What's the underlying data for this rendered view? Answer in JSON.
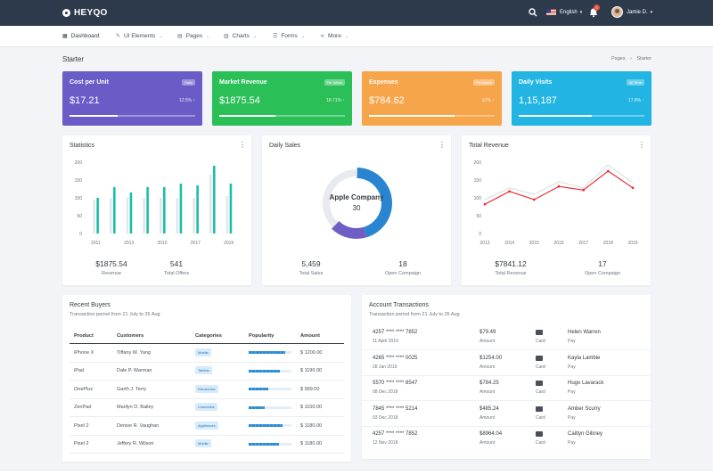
{
  "app": {
    "name": "HEYQO"
  },
  "topbar": {
    "language": "English",
    "notifications_count": "5",
    "user_name": "Jamie D."
  },
  "nav": [
    {
      "label": "Dashboard",
      "icon": "grid-icon"
    },
    {
      "label": "UI Elements",
      "icon": "brush-icon"
    },
    {
      "label": "Pages",
      "icon": "pages-icon"
    },
    {
      "label": "Charts",
      "icon": "chart-icon"
    },
    {
      "label": "Forms",
      "icon": "form-icon"
    },
    {
      "label": "More",
      "icon": "share-icon"
    }
  ],
  "page": {
    "title": "Starter",
    "breadcrumb": [
      "Pages",
      "Starter"
    ]
  },
  "stats": [
    {
      "title": "Cost per Unit",
      "badge": "Daily",
      "value": "$17.21",
      "pct": "12.5%",
      "progress": 0.38,
      "color": "#6a5cc6"
    },
    {
      "title": "Market Revenue",
      "badge": "Per Week",
      "value": "$1875.54",
      "pct": "18.71%",
      "progress": 0.45,
      "color": "#2bbf58"
    },
    {
      "title": "Expenses",
      "badge": "Per Month",
      "value": "$784.62",
      "pct": "57%",
      "progress": 0.68,
      "color": "#f7a54a"
    },
    {
      "title": "Daily Visits",
      "badge": "All Time",
      "value": "1,15,187",
      "pct": "17.8%",
      "progress": 0.58,
      "color": "#22b4e2"
    }
  ],
  "statistics": {
    "title": "Statistics",
    "chart_data": {
      "type": "bar",
      "x": [
        "2011",
        "2012",
        "2013",
        "2014",
        "2015",
        "2016",
        "2017",
        "2018",
        "2019"
      ],
      "xticks": [
        "2011",
        "2013",
        "2015",
        "2017",
        "2019"
      ],
      "yticks": [
        "0",
        "50",
        "100",
        "150",
        "200"
      ],
      "ylim": [
        0,
        200
      ],
      "series": [
        {
          "values": [
            95,
            100,
            100,
            100,
            100,
            100,
            100,
            165,
            105
          ],
          "color": "#e3e7eb"
        },
        {
          "values": [
            100,
            130,
            115,
            130,
            130,
            140,
            135,
            190,
            140
          ],
          "color": "#1bbfa9"
        }
      ]
    },
    "summary": [
      {
        "value": "$1875.54",
        "label": "Revenue"
      },
      {
        "value": "541",
        "label": "Total Offers"
      }
    ]
  },
  "daily_sales": {
    "title": "Daily Sales",
    "chart_data": {
      "type": "pie",
      "center_label": "Apple Company",
      "center_value": "30",
      "slices": [
        {
          "value": 45,
          "color": "#2a85d0"
        },
        {
          "value": 17,
          "color": "#6f5fc4"
        },
        {
          "value": 38,
          "color": "#e7eaee"
        }
      ]
    },
    "summary": [
      {
        "value": "5,459",
        "label": "Total Sales"
      },
      {
        "value": "18",
        "label": "Open Compaign"
      }
    ]
  },
  "total_revenue": {
    "title": "Total Revenue",
    "chart_data": {
      "type": "line",
      "x": [
        "2013",
        "2014",
        "2015",
        "2016",
        "2017",
        "2018",
        "2019"
      ],
      "yticks": [
        "0",
        "50",
        "100",
        "150",
        "200"
      ],
      "ylim": [
        0,
        200
      ],
      "series": [
        {
          "values": [
            95,
            128,
            110,
            145,
            128,
            192,
            142
          ],
          "color": "#e1e4e8"
        },
        {
          "values": [
            82,
            118,
            95,
            132,
            122,
            175,
            128
          ],
          "color": "#e8353a"
        }
      ]
    },
    "summary": [
      {
        "value": "$7841.12",
        "label": "Total Revenue"
      },
      {
        "value": "17",
        "label": "Open Compaign"
      }
    ]
  },
  "recent_buyers": {
    "title": "Recent Buyers",
    "subtitle": "Transaction period from 21 July to 25 Aug",
    "columns": [
      "Product",
      "Customers",
      "Categories",
      "Popularity",
      "Amount"
    ],
    "rows": [
      {
        "product": "iPhone X",
        "customer": "Tiffany W. Yang",
        "category": "Mobile",
        "popularity": 0.85,
        "amount": "$ 1200.00"
      },
      {
        "product": "iPad",
        "customer": "Dale P. Warman",
        "category": "Tablets",
        "popularity": 0.72,
        "amount": "$ 1190.00"
      },
      {
        "product": "OnePlus",
        "customer": "Garth J. Terry",
        "category": "Electronics",
        "popularity": 0.45,
        "amount": "$ 999.00"
      },
      {
        "product": "ZenPad",
        "customer": "Marilyn D. Bailey",
        "category": "Cosmetics",
        "popularity": 0.38,
        "amount": "$ 1150.00"
      },
      {
        "product": "Pixel 2",
        "customer": "Denise R. Vaughan",
        "category": "Appliences",
        "popularity": 0.8,
        "amount": "$ 1180.00"
      },
      {
        "product": "Pixel 2",
        "customer": "Jeffery R. Wilson",
        "category": "Mobile",
        "popularity": 0.7,
        "amount": "$ 1180.00"
      }
    ]
  },
  "transactions": {
    "title": "Account Transactions",
    "subtitle": "Transaction period from 21 July to 25 Aug",
    "rows": [
      {
        "number": "4257 **** **** 7852",
        "date": "11 April 2019",
        "amount": "$79.49",
        "amount_label": "Amount",
        "method": "Card",
        "name": "Helen Warren",
        "action": "Pay"
      },
      {
        "number": "4265 **** **** 0025",
        "date": "28 Jan 2019",
        "amount": "$1254.00",
        "amount_label": "Amount",
        "method": "Card",
        "name": "Kayla Lambie",
        "action": "Pay"
      },
      {
        "number": "5570 **** **** 8547",
        "date": "08 Dec 2018",
        "amount": "$784.25",
        "amount_label": "Amount",
        "method": "Card",
        "name": "Hugo Lavarack",
        "action": "Pay"
      },
      {
        "number": "7845 **** **** 5214",
        "date": "03 Dec 2018",
        "amount": "$485.24",
        "amount_label": "Amount",
        "method": "Card",
        "name": "Amber Scurry",
        "action": "Pay"
      },
      {
        "number": "4257 **** **** 7852",
        "date": "12 Nov 2018",
        "amount": "$8964.04",
        "amount_label": "Amount",
        "method": "Card",
        "name": "Caitlyn Gibney",
        "action": "Pay"
      }
    ]
  }
}
